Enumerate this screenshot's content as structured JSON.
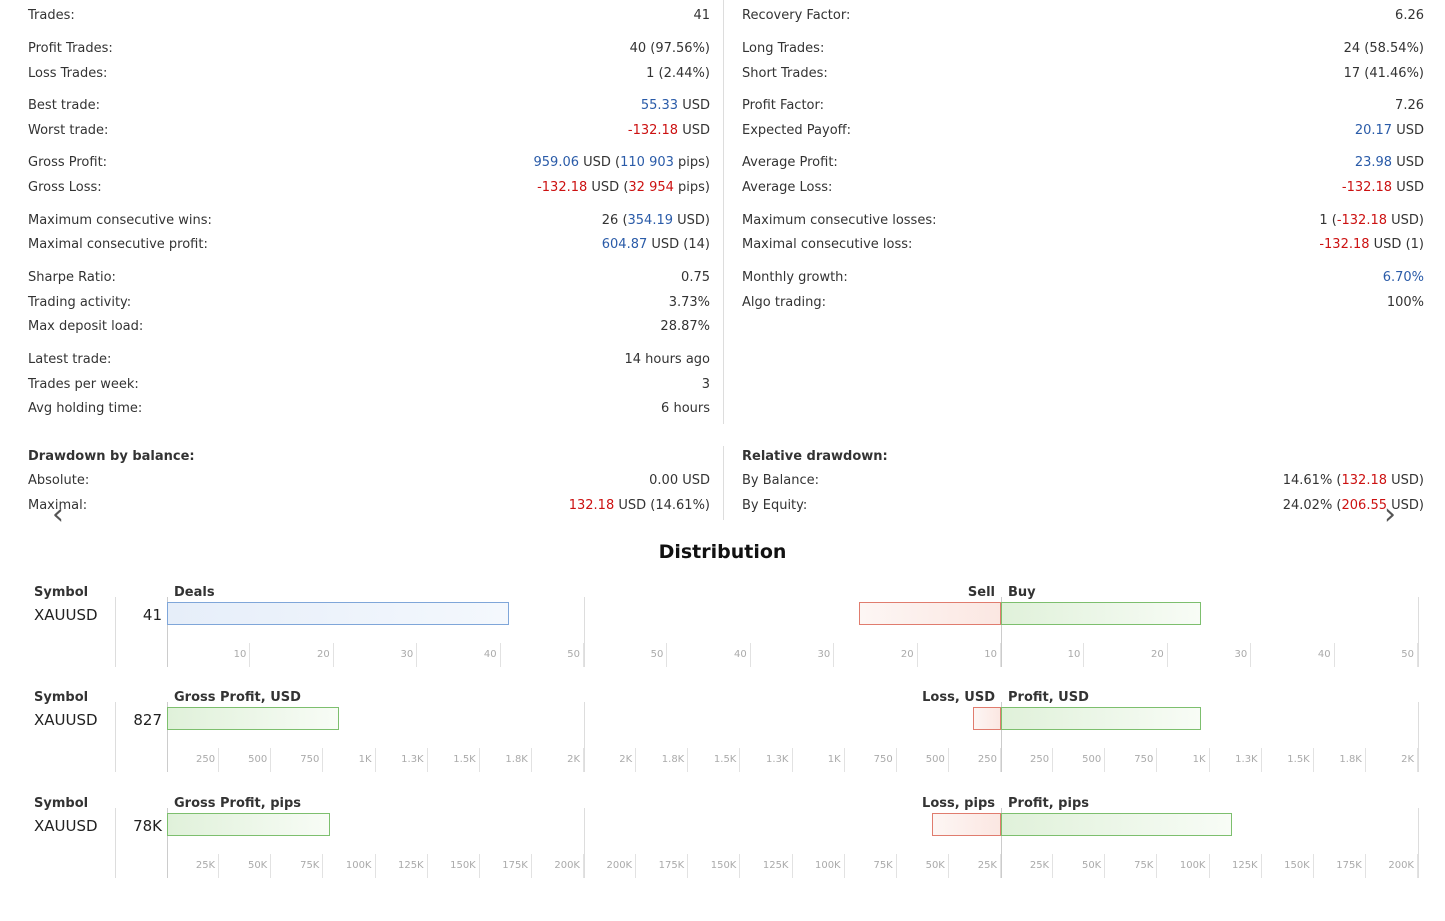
{
  "stats_left": [
    {
      "label": "Trades:",
      "value": "41"
    },
    {
      "label": "Profit Trades:",
      "value": "40 (97.56%)"
    },
    {
      "label": "Loss Trades:",
      "value": "1 (2.44%)"
    },
    {
      "label": "Best trade:",
      "value_pos": "55.33",
      "value_rest": " USD"
    },
    {
      "label": "Worst trade:",
      "value_neg": "-132.18",
      "value_rest": " USD"
    },
    {
      "label": "Gross Profit:",
      "v1": "959.06",
      "v2": " USD (",
      "v3": "110 903",
      "v4": " pips)"
    },
    {
      "label": "Gross Loss:",
      "v1": "-132.18",
      "v2": " USD (",
      "v3": "32 954",
      "v4": " pips)"
    },
    {
      "label": "Maximum consecutive wins:",
      "v1": "26 (",
      "v2": "354.19",
      "v3": " USD)"
    },
    {
      "label": "Maximal consecutive profit:",
      "v1": "604.87",
      "v2": " USD (14)"
    },
    {
      "label": "Sharpe Ratio:",
      "value": "0.75"
    },
    {
      "label": "Trading activity:",
      "value": "3.73%"
    },
    {
      "label": "Max deposit load:",
      "value": "28.87%"
    },
    {
      "label": "Latest trade:",
      "value": "14 hours ago"
    },
    {
      "label": "Trades per week:",
      "value": "3"
    },
    {
      "label": "Avg holding time:",
      "value": "6 hours"
    }
  ],
  "stats_right": [
    {
      "label": "Recovery Factor:",
      "value": "6.26"
    },
    {
      "label": "Long Trades:",
      "value": "24 (58.54%)"
    },
    {
      "label": "Short Trades:",
      "value": "17 (41.46%)"
    },
    {
      "label": "Profit Factor:",
      "value": "7.26"
    },
    {
      "label": "Expected Payoff:",
      "v1": "20.17",
      "v2": " USD"
    },
    {
      "label": "Average Profit:",
      "v1": "23.98",
      "v2": " USD"
    },
    {
      "label": "Average Loss:",
      "v1": "-132.18",
      "v2": " USD"
    },
    {
      "label": "Maximum consecutive losses:",
      "v1": "1 (",
      "v2": "-132.18",
      "v3": " USD)"
    },
    {
      "label": "Maximal consecutive loss:",
      "v1": "-132.18",
      "v2": " USD (1)"
    },
    {
      "label": "Monthly growth:",
      "value": "6.70%"
    },
    {
      "label": "Algo trading:",
      "value": "100%"
    }
  ],
  "drawdown_balance": {
    "title": "Drawdown by balance:",
    "absolute_label": "Absolute:",
    "absolute_value": "0.00 USD",
    "maximal_label": "Maximal:",
    "maximal_v1": "132.18",
    "maximal_v2": " USD (14.61%)"
  },
  "relative_drawdown": {
    "title": "Relative drawdown:",
    "balance_label": "By Balance:",
    "balance_v1": "14.61% (",
    "balance_v2": "132.18",
    "balance_v3": " USD)",
    "equity_label": "By Equity:",
    "equity_v1": "24.02% (",
    "equity_v2": "206.55",
    "equity_v3": " USD)"
  },
  "nav": {
    "prev": "‹",
    "next": "›"
  },
  "distribution": {
    "title": "Distribution",
    "sections": [
      {
        "symbol_header": "Symbol",
        "symbol": "XAUUSD",
        "total": "41",
        "left_header": "Deals",
        "right_left_header": "Sell",
        "right_right_header": "Buy",
        "left_value": 41,
        "left_max": 50,
        "left_color": "blue",
        "sell_value": 17,
        "buy_value": 24,
        "right_max": 50,
        "left_ticks": [
          "10",
          "20",
          "30",
          "40",
          "50"
        ],
        "right_left_ticks": [
          "50",
          "40",
          "30",
          "20",
          "10"
        ],
        "right_right_ticks": [
          "10",
          "20",
          "30",
          "40",
          "50"
        ]
      },
      {
        "symbol_header": "Symbol",
        "symbol": "XAUUSD",
        "total": "827",
        "left_header": "Gross Profit, USD",
        "right_left_header": "Loss, USD",
        "right_right_header": "Profit, USD",
        "left_value": 827,
        "left_max": 2000,
        "left_color": "green",
        "sell_value": 132.18,
        "buy_value": 959.06,
        "right_max": 2000,
        "left_ticks": [
          "250",
          "500",
          "750",
          "1K",
          "1.3K",
          "1.5K",
          "1.8K",
          "2K"
        ],
        "right_left_ticks": [
          "2K",
          "1.8K",
          "1.5K",
          "1.3K",
          "1K",
          "750",
          "500",
          "250"
        ],
        "right_right_ticks": [
          "250",
          "500",
          "750",
          "1K",
          "1.3K",
          "1.5K",
          "1.8K",
          "2K"
        ]
      },
      {
        "symbol_header": "Symbol",
        "symbol": "XAUUSD",
        "total": "78K",
        "left_header": "Gross Profit, pips",
        "right_left_header": "Loss, pips",
        "right_right_header": "Profit, pips",
        "left_value": 77949,
        "left_max": 200000,
        "left_color": "green",
        "sell_value": 32954,
        "buy_value": 110903,
        "right_max": 200000,
        "left_ticks": [
          "25K",
          "50K",
          "75K",
          "100K",
          "125K",
          "150K",
          "175K",
          "200K"
        ],
        "right_left_ticks": [
          "200K",
          "175K",
          "150K",
          "125K",
          "100K",
          "75K",
          "50K",
          "25K"
        ],
        "right_right_ticks": [
          "25K",
          "50K",
          "75K",
          "100K",
          "125K",
          "150K",
          "175K",
          "200K"
        ]
      }
    ]
  }
}
